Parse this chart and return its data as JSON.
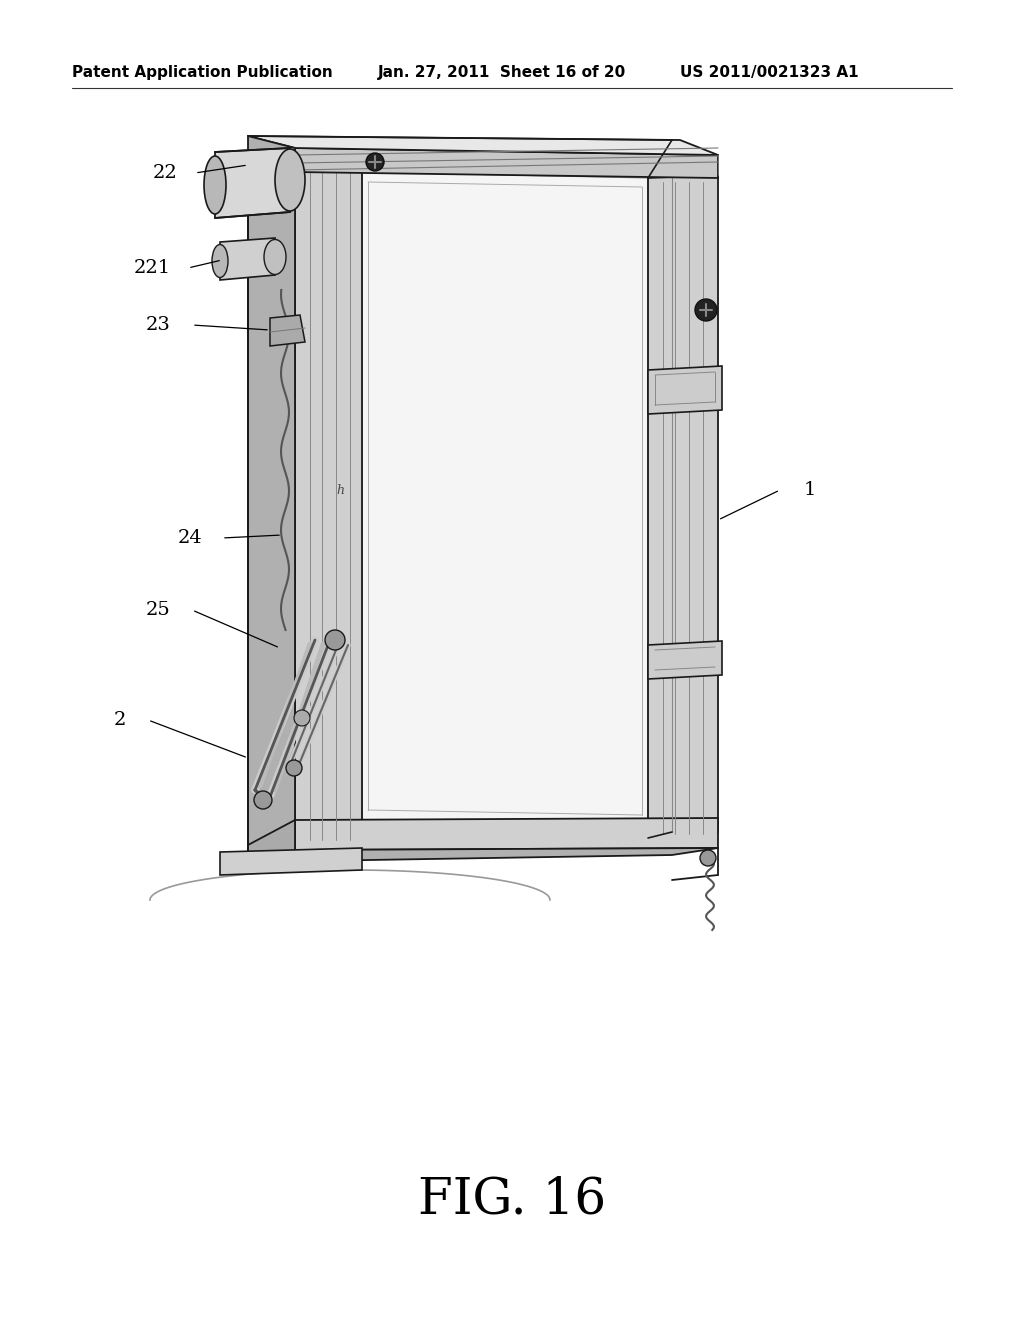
{
  "background_color": "#ffffff",
  "header_left": "Patent Application Publication",
  "header_mid": "Jan. 27, 2011  Sheet 16 of 20",
  "header_right": "US 2011/0021323 A1",
  "figure_label": "FIG. 16",
  "line_color": "#1a1a1a",
  "fill_light": "#e8e8e8",
  "fill_mid": "#d0d0d0",
  "fill_dark": "#b0b0b0",
  "fill_white": "#f5f5f5"
}
